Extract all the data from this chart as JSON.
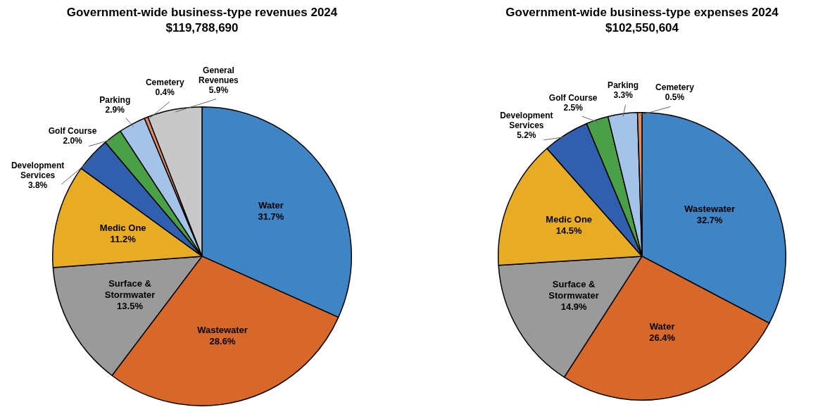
{
  "chart_data": [
    {
      "type": "pie",
      "title": "Government-wide business-type revenues 2024",
      "subtitle": "$119,788,690",
      "categories": [
        "Water",
        "Wastewater",
        "Surface & Stormwater",
        "Medic One",
        "Development Services",
        "Golf Course",
        "Parking",
        "Cemetery",
        "General Revenues"
      ],
      "values": [
        31.7,
        28.6,
        13.5,
        11.2,
        3.8,
        2.0,
        2.9,
        0.4,
        5.9
      ],
      "value_labels": [
        "31.7%",
        "28.6%",
        "13.5%",
        "11.2%",
        "3.8%",
        "2.0%",
        "2.9%",
        "0.4%",
        "5.9%"
      ],
      "colors": [
        "#3f84c4",
        "#d8682a",
        "#9a9a9a",
        "#e8ac24",
        "#2f5fae",
        "#4aa046",
        "#a3c3e8",
        "#e8895a",
        "#c8c8c8"
      ]
    },
    {
      "type": "pie",
      "title": "Government-wide business-type expenses 2024",
      "subtitle": "$102,550,604",
      "categories": [
        "Wastewater",
        "Water",
        "Surface & Stormwater",
        "Medic One",
        "Development Services",
        "Golf Course",
        "Parking",
        "Cemetery"
      ],
      "values": [
        32.7,
        26.4,
        14.9,
        14.5,
        5.2,
        2.5,
        3.3,
        0.5
      ],
      "value_labels": [
        "32.7%",
        "26.4%",
        "14.9%",
        "14.5%",
        "5.2%",
        "2.5%",
        "3.3%",
        "0.5%"
      ],
      "colors": [
        "#3f84c4",
        "#d8682a",
        "#9a9a9a",
        "#e8ac24",
        "#2f5fae",
        "#4aa046",
        "#a3c3e8",
        "#e8895a"
      ]
    }
  ]
}
